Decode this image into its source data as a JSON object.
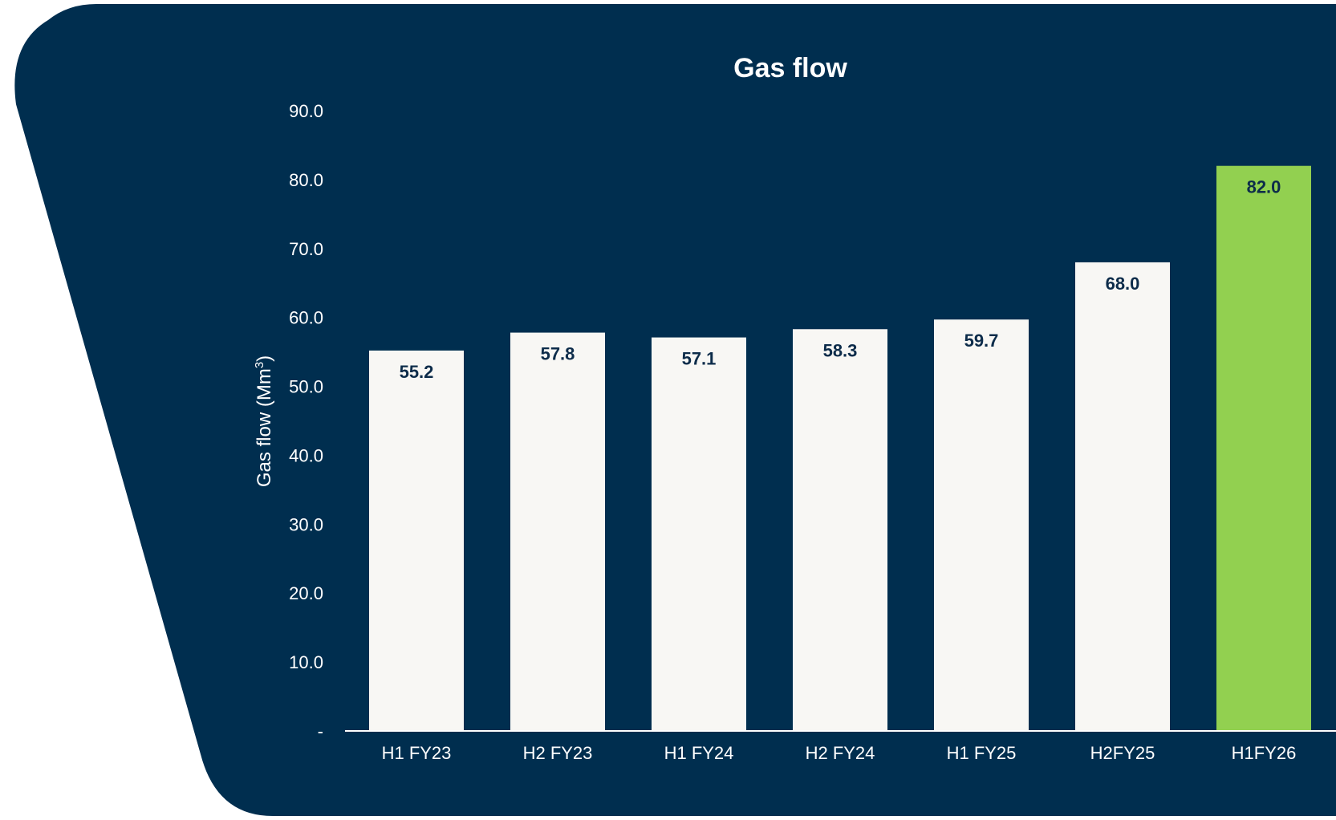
{
  "colors": {
    "panel": "#002e4f",
    "page_background": "#ffffff",
    "bar_default": "#f8f7f4",
    "bar_highlight": "#92d050",
    "text_light": "#ffffff",
    "data_label": "#0d2c4a",
    "axis_line": "#ffffff"
  },
  "chart_data": {
    "type": "bar",
    "title": "Gas flow",
    "xlabel": "",
    "ylabel": "Gas flow (Mm",
    "ylabel_superscript": "3",
    "ylabel_suffix": ")",
    "categories": [
      "H1 FY23",
      "H2 FY23",
      "H1 FY24",
      "H2 FY24",
      "H1 FY25",
      "H2FY25",
      "H1FY26"
    ],
    "values": [
      55.2,
      57.8,
      57.1,
      58.3,
      59.7,
      68.0,
      82.0
    ],
    "data_labels": [
      "55.2",
      "57.8",
      "57.1",
      "58.3",
      "59.7",
      "68.0",
      "82.0"
    ],
    "highlight_index": 6,
    "ylim": [
      0,
      90
    ],
    "yticks": [
      0,
      10,
      20,
      30,
      40,
      50,
      60,
      70,
      80,
      90
    ],
    "ytick_labels": [
      "-",
      "10.0",
      "20.0",
      "30.0",
      "40.0",
      "50.0",
      "60.0",
      "70.0",
      "80.0",
      "90.0"
    ],
    "grid": false,
    "legend": "none"
  }
}
